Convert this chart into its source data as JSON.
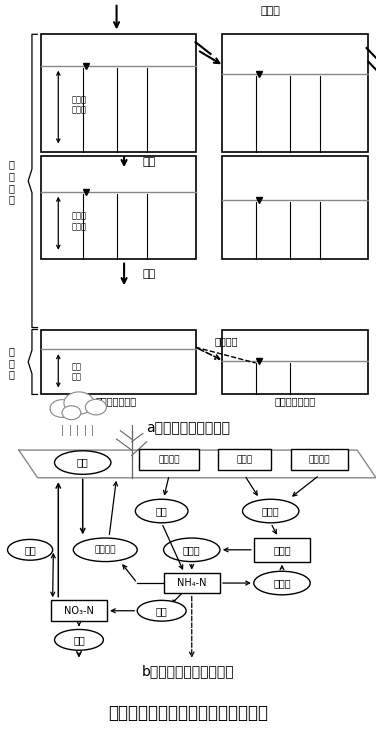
{
  "bg_color": "#ffffff",
  "title": "図３　地下水質予測モデルの概念図",
  "title_fontsize": 12,
  "subtitle_a": "a．水収支サブモデル",
  "subtitle_b": "b．窒素収支サブモデル",
  "subtitle_fontsize": 10
}
